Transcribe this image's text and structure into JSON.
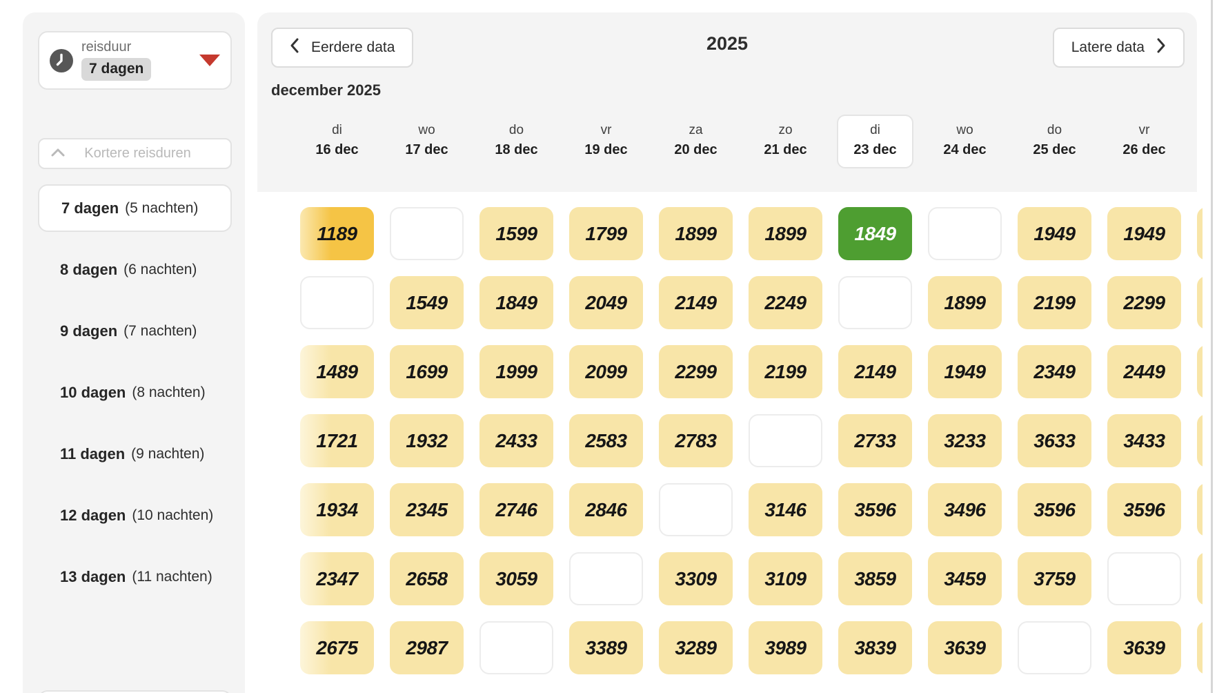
{
  "colors": {
    "panel_bg": "#f4f4f4",
    "price_regular_bg": "#f8e5a8",
    "price_best_bg": "#f5c445",
    "price_selected_bg": "#4e9e31",
    "price_selected_text": "#ffffff",
    "accent_red": "#c5392e"
  },
  "sidebar": {
    "duration_filter": {
      "icon": "clock-icon",
      "label": "reisduur",
      "value": "7 dagen"
    },
    "collapse_button": {
      "icon": "chevron-up-icon",
      "label": "Kortere reisduren"
    },
    "items": [
      {
        "days": "7 dagen",
        "nights": "(5 nachten)",
        "selected": true
      },
      {
        "days": "8 dagen",
        "nights": "(6 nachten)",
        "selected": false
      },
      {
        "days": "9 dagen",
        "nights": "(7 nachten)",
        "selected": false
      },
      {
        "days": "10 dagen",
        "nights": "(8 nachten)",
        "selected": false
      },
      {
        "days": "11 dagen",
        "nights": "(9 nachten)",
        "selected": false
      },
      {
        "days": "12 dagen",
        "nights": "(10 nachten)",
        "selected": false
      },
      {
        "days": "13 dagen",
        "nights": "(11 nachten)",
        "selected": false
      }
    ]
  },
  "header": {
    "prev_button": "Eerdere data",
    "year": "2025",
    "next_button": "Latere data",
    "month_label": "december 2025"
  },
  "calendar": {
    "columns": [
      {
        "day": "di",
        "date": "16 dec",
        "selected": false
      },
      {
        "day": "wo",
        "date": "17 dec",
        "selected": false
      },
      {
        "day": "do",
        "date": "18 dec",
        "selected": false
      },
      {
        "day": "vr",
        "date": "19 dec",
        "selected": false
      },
      {
        "day": "za",
        "date": "20 dec",
        "selected": false
      },
      {
        "day": "zo",
        "date": "21 dec",
        "selected": false
      },
      {
        "day": "di",
        "date": "23 dec",
        "selected": true
      },
      {
        "day": "wo",
        "date": "24 dec",
        "selected": false
      },
      {
        "day": "do",
        "date": "25 dec",
        "selected": false
      },
      {
        "day": "vr",
        "date": "26 dec",
        "selected": false
      }
    ],
    "rows": [
      {
        "duration": "7 dagen",
        "cells": [
          {
            "price": "1189",
            "type": "best",
            "fade": true
          },
          {
            "price": "",
            "type": "empty"
          },
          {
            "price": "1599",
            "type": "normal"
          },
          {
            "price": "1799",
            "type": "normal"
          },
          {
            "price": "1899",
            "type": "normal"
          },
          {
            "price": "1899",
            "type": "normal"
          },
          {
            "price": "1849",
            "type": "selected"
          },
          {
            "price": "",
            "type": "empty"
          },
          {
            "price": "1949",
            "type": "normal"
          },
          {
            "price": "1949",
            "type": "normal"
          },
          {
            "price": "",
            "type": "cut"
          }
        ]
      },
      {
        "duration": "8 dagen",
        "cells": [
          {
            "price": "",
            "type": "empty"
          },
          {
            "price": "1549",
            "type": "normal"
          },
          {
            "price": "1849",
            "type": "normal"
          },
          {
            "price": "2049",
            "type": "normal"
          },
          {
            "price": "2149",
            "type": "normal"
          },
          {
            "price": "2249",
            "type": "normal"
          },
          {
            "price": "",
            "type": "empty"
          },
          {
            "price": "1899",
            "type": "normal"
          },
          {
            "price": "2199",
            "type": "normal"
          },
          {
            "price": "2299",
            "type": "normal"
          },
          {
            "price": "",
            "type": "cut"
          }
        ]
      },
      {
        "duration": "9 dagen",
        "cells": [
          {
            "price": "1489",
            "type": "normal",
            "fade": true
          },
          {
            "price": "1699",
            "type": "normal"
          },
          {
            "price": "1999",
            "type": "normal"
          },
          {
            "price": "2099",
            "type": "normal"
          },
          {
            "price": "2299",
            "type": "normal"
          },
          {
            "price": "2199",
            "type": "normal"
          },
          {
            "price": "2149",
            "type": "normal"
          },
          {
            "price": "1949",
            "type": "normal"
          },
          {
            "price": "2349",
            "type": "normal"
          },
          {
            "price": "2449",
            "type": "normal"
          },
          {
            "price": "",
            "type": "cut"
          }
        ]
      },
      {
        "duration": "10 dagen",
        "cells": [
          {
            "price": "1721",
            "type": "normal",
            "fade": true
          },
          {
            "price": "1932",
            "type": "normal"
          },
          {
            "price": "2433",
            "type": "normal"
          },
          {
            "price": "2583",
            "type": "normal"
          },
          {
            "price": "2783",
            "type": "normal"
          },
          {
            "price": "",
            "type": "empty"
          },
          {
            "price": "2733",
            "type": "normal"
          },
          {
            "price": "3233",
            "type": "normal"
          },
          {
            "price": "3633",
            "type": "normal"
          },
          {
            "price": "3433",
            "type": "normal"
          },
          {
            "price": "",
            "type": "cut"
          }
        ]
      },
      {
        "duration": "11 dagen",
        "cells": [
          {
            "price": "1934",
            "type": "normal",
            "fade": true
          },
          {
            "price": "2345",
            "type": "normal"
          },
          {
            "price": "2746",
            "type": "normal"
          },
          {
            "price": "2846",
            "type": "normal"
          },
          {
            "price": "",
            "type": "empty"
          },
          {
            "price": "3146",
            "type": "normal"
          },
          {
            "price": "3596",
            "type": "normal"
          },
          {
            "price": "3496",
            "type": "normal"
          },
          {
            "price": "3596",
            "type": "normal"
          },
          {
            "price": "3596",
            "type": "normal"
          },
          {
            "price": "",
            "type": "cut"
          }
        ]
      },
      {
        "duration": "12 dagen",
        "cells": [
          {
            "price": "2347",
            "type": "normal",
            "fade": true
          },
          {
            "price": "2658",
            "type": "normal"
          },
          {
            "price": "3059",
            "type": "normal"
          },
          {
            "price": "",
            "type": "empty"
          },
          {
            "price": "3309",
            "type": "normal"
          },
          {
            "price": "3109",
            "type": "normal"
          },
          {
            "price": "3859",
            "type": "normal"
          },
          {
            "price": "3459",
            "type": "normal"
          },
          {
            "price": "3759",
            "type": "normal"
          },
          {
            "price": "",
            "type": "empty"
          },
          {
            "price": "",
            "type": "cut"
          }
        ]
      },
      {
        "duration": "13 dagen",
        "cells": [
          {
            "price": "2675",
            "type": "normal",
            "fade": true
          },
          {
            "price": "2987",
            "type": "normal"
          },
          {
            "price": "",
            "type": "empty"
          },
          {
            "price": "3389",
            "type": "normal"
          },
          {
            "price": "3289",
            "type": "normal"
          },
          {
            "price": "3989",
            "type": "normal"
          },
          {
            "price": "3839",
            "type": "normal"
          },
          {
            "price": "3639",
            "type": "normal"
          },
          {
            "price": "",
            "type": "empty"
          },
          {
            "price": "3639",
            "type": "normal"
          },
          {
            "price": "",
            "type": "cut"
          }
        ]
      }
    ]
  }
}
